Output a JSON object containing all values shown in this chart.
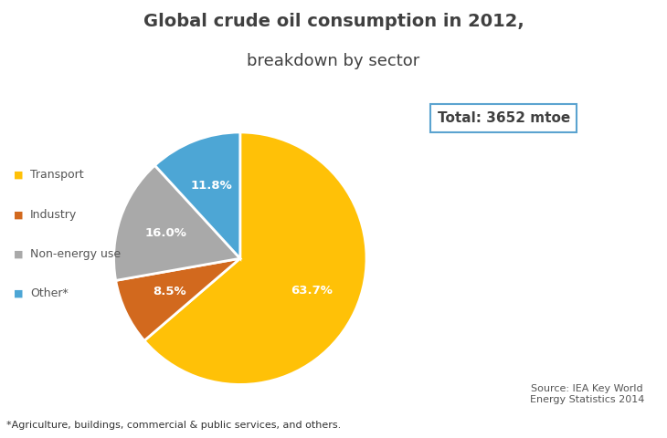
{
  "title_line1": "Global crude oil consumption in 2012,",
  "title_line2": "breakdown by sector",
  "labels": [
    "Transport",
    "Industry",
    "Non-energy use",
    "Other*"
  ],
  "values": [
    63.7,
    8.5,
    16.0,
    11.8
  ],
  "colors": [
    "#FFC107",
    "#D2691E",
    "#A9A9A9",
    "#4DA6D5"
  ],
  "pct_labels": [
    "63.7%",
    "8.5%",
    "16.0%",
    "11.8%"
  ],
  "legend_labels": [
    "Transport",
    "Industry",
    "Non-energy use",
    "Other*"
  ],
  "legend_colors": [
    "#FFC107",
    "#D2691E",
    "#A9A9A9",
    "#4DA6D5"
  ],
  "total_text": "Total: 3652 mtoe",
  "source_text": "Source: IEA Key World\nEnergy Statistics 2014",
  "footnote": "*Agriculture, buildings, commercial & public services, and others.",
  "startangle": 90,
  "background_color": "#FFFFFF",
  "title_color": "#404040",
  "label_color": "#FFFFFF",
  "legend_label_color": "#555555",
  "total_box_edge_color": "#5BA3D0",
  "total_box_text_color": "#404040"
}
